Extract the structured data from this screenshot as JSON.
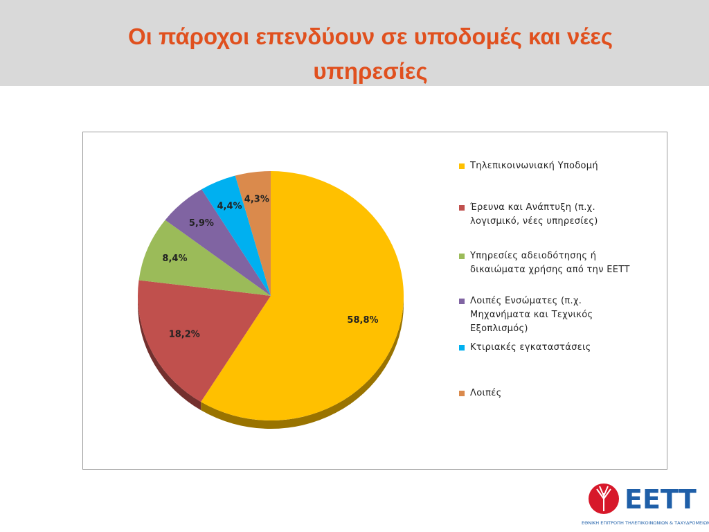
{
  "header": {
    "title": "Οι πάροχοι επενδύουν σε υποδομές και νέες υπηρεσίες"
  },
  "chart_data": {
    "type": "pie",
    "categories": [
      "Τηλεπικοινωνιακή Υποδομή",
      "Έρευνα και Ανάπτυξη (π.χ. λογισμικό, νέες υπηρεσίες)",
      "Υπηρεσίες αδειοδότησης ή δικαιώματα χρήσης από την ΕΕΤΤ",
      "Λοιπές Ενσώματες (π.χ. Μηχανήματα και Τεχνικός Εξοπλισμός)",
      "Κτιριακές εγκαταστάσεις",
      "Λοιπές"
    ],
    "values": [
      58.8,
      18.2,
      8.4,
      5.9,
      4.4,
      4.3
    ],
    "value_labels": [
      "58,8%",
      "18,2%",
      "8,4%",
      "5,9%",
      "4,4%",
      "4,3%"
    ],
    "colors": [
      "#FFC000",
      "#C0504D",
      "#9BBB59",
      "#8064A2",
      "#00B0F0",
      "#DA8A4C"
    ],
    "legend": "right"
  },
  "logo": {
    "name": "ΕΕΤΤ",
    "subtitle": "ΕΘΝΙΚΗ ΕΠΙΤΡΟΠΗ ΤΗΛΕΠΙΚΟΙΝΩΝΙΩΝ & ΤΑΧΥΔΡΟΜΕΙΩΝ"
  }
}
